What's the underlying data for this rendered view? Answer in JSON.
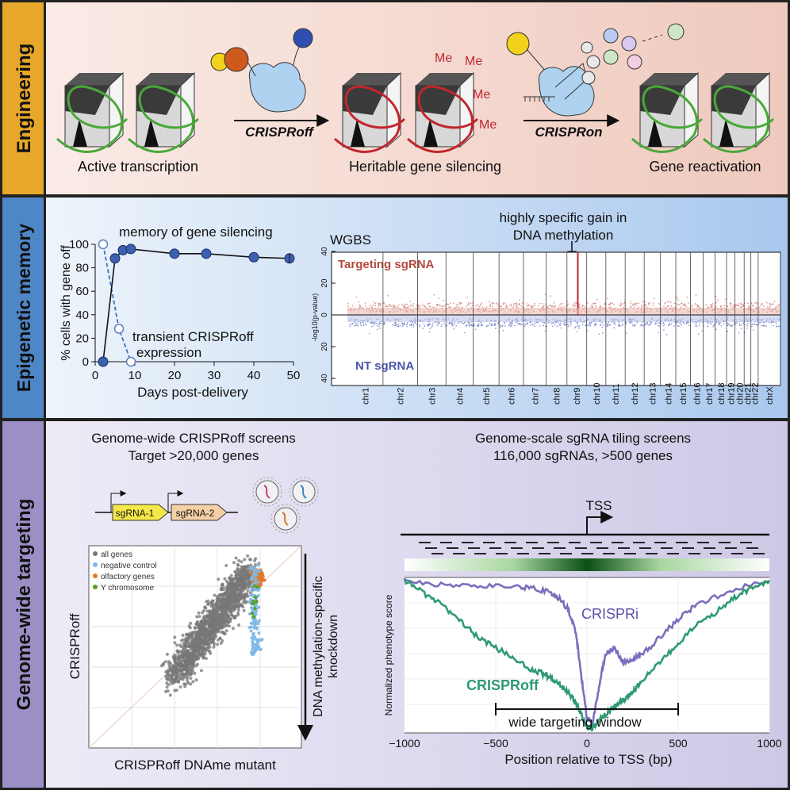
{
  "panels": {
    "engineering": {
      "side_label": "Engineering",
      "stage1": "Active transcription",
      "stage2": "Heritable gene silencing",
      "stage3": "Gene reactivation",
      "arrow1": "CRISPRoff",
      "arrow2": "CRISPRon",
      "me": [
        "Me",
        "Me",
        "Me",
        "Me"
      ]
    },
    "memory": {
      "side_label": "Epigenetic memory",
      "memory_label": "memory of gene silencing",
      "transient_label_1": "transient CRISPRoff",
      "transient_label_2": "expression",
      "wgbs": "WGBS",
      "specific_1": "highly specific gain in",
      "specific_2": "DNA methylation",
      "targeting": "Targeting sgRNA",
      "nt": "NT sgRNA"
    },
    "targeting": {
      "side_label": "Genome-wide targeting",
      "screen_title_1": "Genome-wide CRISPRoff screens",
      "screen_title_2": "Target >20,000 genes",
      "sgrna1": "sgRNA-1",
      "sgrna2": "sgRNA-2",
      "tiling_title_1": "Genome-scale sgRNA tiling screens",
      "tiling_title_2": "116,000 sgRNAs, >500 genes",
      "tss": "TSS",
      "knockdown_1": "DNA methylation-specific",
      "knockdown_2": "knockdown",
      "window": "wide targeting window"
    }
  },
  "colors": {
    "eng_bg": "#f6dcd3",
    "mem_bg": "#dbe8f6",
    "tgt_bg": "#e5e1f1",
    "tab_eng": "#e6a72a",
    "tab_mem": "#4f86c6",
    "tab_tgt": "#9b8fc6",
    "silent": "#c0272d",
    "active": "#4aa83a",
    "crispri": "#7a6fbe",
    "crisproff": "#2e9a72"
  },
  "chart_data": [
    {
      "type": "line",
      "xlabel": "Days post-delivery",
      "ylabel": "% cells with gene off",
      "xlim": [
        0,
        50
      ],
      "ylim": [
        0,
        100
      ],
      "xticks": [
        0,
        10,
        20,
        30,
        40,
        50
      ],
      "yticks": [
        0,
        20,
        40,
        60,
        80,
        100
      ],
      "series": [
        {
          "x": [
            2,
            5,
            7,
            9,
            20,
            28,
            40,
            49
          ],
          "y": [
            0,
            88,
            95,
            96,
            92,
            92,
            89,
            88
          ]
        },
        {
          "x": [
            2,
            6,
            9
          ],
          "y": [
            100,
            28,
            0
          ]
        }
      ]
    },
    {
      "type": "scatter",
      "ylabel": "-log10(p-value)",
      "yticks": [
        40,
        20,
        0,
        20,
        40
      ],
      "chromosomes": [
        "chr1",
        "chr2",
        "chr3",
        "chr4",
        "chr5",
        "chr6",
        "chr7",
        "chr8",
        "chr9",
        "chr10",
        "chr11",
        "chr12",
        "chr13",
        "chr14",
        "chr15",
        "chr16",
        "chr17",
        "chr18",
        "chr19",
        "chr20",
        "chr21",
        "chr22",
        "chrX"
      ],
      "chrom_sizes_mb": [
        249,
        242,
        198,
        190,
        181,
        171,
        159,
        145,
        138,
        134,
        135,
        133,
        114,
        107,
        102,
        90,
        83,
        80,
        59,
        64,
        47,
        51,
        156
      ],
      "peak_chromosome": "chr9",
      "peak_value": 40
    },
    {
      "type": "scatter",
      "xlabel": "CRISPRoff DNAme mutant",
      "ylabel": "CRISPRoff",
      "legend": [
        "all genes",
        "negative control",
        "olfactory genes",
        "Y chromosome"
      ],
      "legend_colors": [
        "#777777",
        "#7fb8e6",
        "#e07a2a",
        "#5aa02c"
      ]
    },
    {
      "type": "line",
      "xlabel": "Position relative to TSS (bp)",
      "ylabel": "Normalized phenotype score",
      "xlim": [
        -1000,
        1000
      ],
      "xticks": [
        -1000,
        -500,
        0,
        500,
        1000
      ],
      "series": [
        {
          "name": "CRISPRi",
          "x": [
            -1000,
            -800,
            -600,
            -400,
            -300,
            -200,
            -150,
            -100,
            -60,
            -30,
            0,
            30,
            60,
            100,
            150,
            200,
            250,
            300,
            400,
            500,
            600,
            800,
            1000
          ],
          "y": [
            1.0,
            0.97,
            0.96,
            0.96,
            0.95,
            0.92,
            0.88,
            0.8,
            0.65,
            0.35,
            0.08,
            0.04,
            0.25,
            0.5,
            0.55,
            0.45,
            0.48,
            0.5,
            0.62,
            0.74,
            0.84,
            0.94,
            1.0
          ]
        },
        {
          "name": "CRISPRoff",
          "x": [
            -1000,
            -900,
            -800,
            -700,
            -600,
            -500,
            -400,
            -300,
            -250,
            -200,
            -150,
            -100,
            -60,
            -30,
            0,
            30,
            60,
            100,
            150,
            200,
            250,
            300,
            400,
            500,
            600,
            700,
            800,
            900,
            1000
          ],
          "y": [
            1.0,
            0.92,
            0.84,
            0.74,
            0.62,
            0.55,
            0.48,
            0.4,
            0.38,
            0.35,
            0.3,
            0.25,
            0.18,
            0.1,
            0.02,
            0.0,
            0.06,
            0.1,
            0.16,
            0.2,
            0.25,
            0.33,
            0.45,
            0.58,
            0.7,
            0.78,
            0.88,
            0.95,
            1.0
          ]
        }
      ]
    }
  ]
}
